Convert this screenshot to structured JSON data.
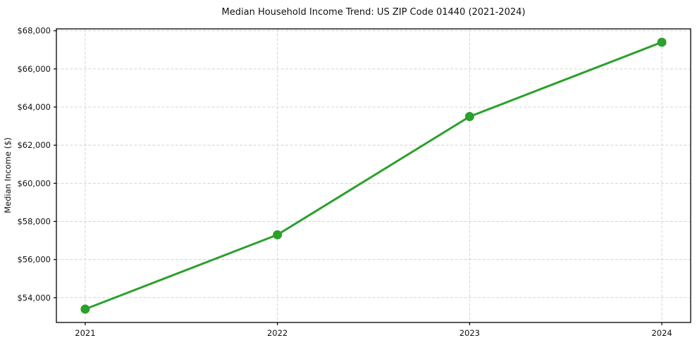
{
  "chart_data": {
    "type": "line",
    "title": "Median Household Income Trend: US ZIP Code 01440 (2021-2024)",
    "xlabel": "",
    "ylabel": "Median Income ($)",
    "x": [
      2021,
      2022,
      2023,
      2024
    ],
    "x_tick_labels": [
      "2021",
      "2022",
      "2023",
      "2024"
    ],
    "y_ticks": [
      54000,
      56000,
      58000,
      60000,
      62000,
      64000,
      66000,
      68000
    ],
    "y_tick_labels": [
      "$54,000",
      "$56,000",
      "$58,000",
      "$60,000",
      "$62,000",
      "$64,000",
      "$66,000",
      "$68,000"
    ],
    "series": [
      {
        "name": "Median Household Income",
        "values": [
          53400,
          57300,
          63500,
          67400
        ],
        "color": "#2ca02c",
        "marker": "circle",
        "line_width": 3,
        "marker_radius": 6.5
      }
    ],
    "xlim": [
      2020.85,
      2024.15
    ],
    "ylim": [
      52700,
      68100
    ],
    "grid": true,
    "legend": "none",
    "background_color": "#ffffff",
    "grid_color": "#d4d4d4",
    "axis_color": "#000000",
    "text_color": "#111111"
  }
}
